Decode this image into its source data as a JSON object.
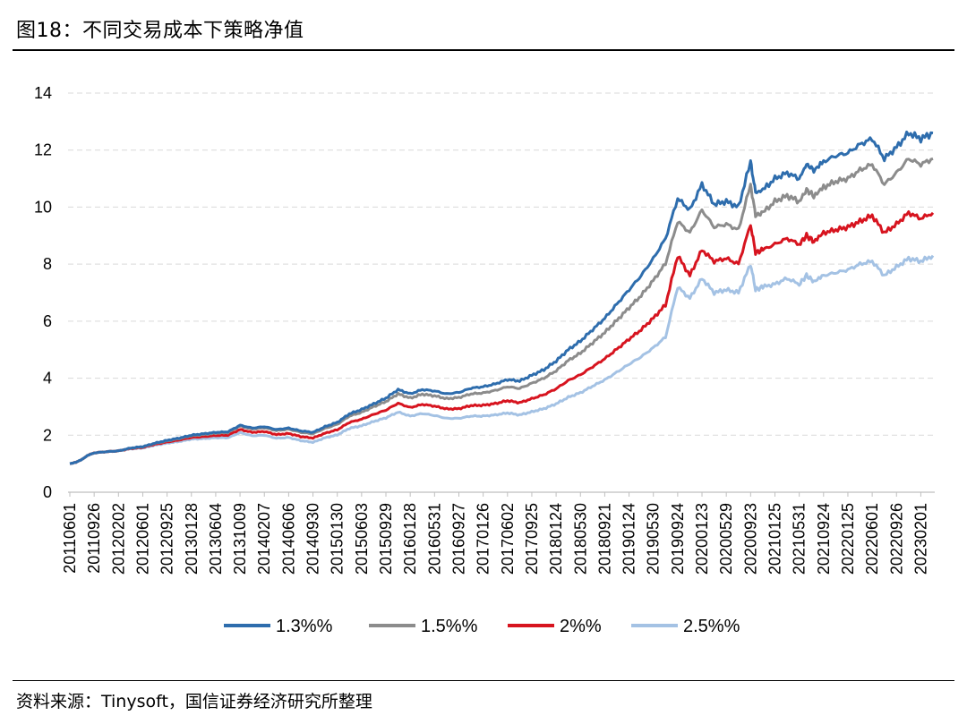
{
  "header": {
    "title": "图18：不同交易成本下策略净值"
  },
  "footer": {
    "source": "资料来源：Tinysoft，国信证券经济研究所整理"
  },
  "chart_data": {
    "type": "line",
    "title": "",
    "xlabel": "",
    "ylabel": "",
    "ylim": [
      0,
      14
    ],
    "yticks": [
      0,
      2,
      4,
      6,
      8,
      10,
      12,
      14
    ],
    "grid": "horizontal-dashed",
    "legend_position": "bottom",
    "x_ticks": [
      "20110601",
      "20110926",
      "20120202",
      "20120601",
      "20120925",
      "20130128",
      "20130604",
      "20131009",
      "20140207",
      "20140606",
      "20140930",
      "20150130",
      "20150603",
      "20150929",
      "20160128",
      "20160531",
      "20160927",
      "20170126",
      "20170602",
      "20170925",
      "20180124",
      "20180530",
      "20180921",
      "20190124",
      "20190530",
      "20190924",
      "20200123",
      "20200529",
      "20200923",
      "20210125",
      "20210531",
      "20210924",
      "20220125",
      "20220601",
      "20220926",
      "20230201"
    ],
    "x": [
      0,
      0.25,
      0.5,
      0.75,
      1,
      1.5,
      2,
      2.5,
      3,
      3.5,
      4,
      4.5,
      5,
      5.5,
      6,
      6.5,
      7,
      7.5,
      8,
      8.5,
      9,
      9.5,
      10,
      10.5,
      11,
      11.5,
      12,
      12.5,
      13,
      13.5,
      14,
      14.5,
      15,
      15.5,
      16,
      16.5,
      17,
      17.5,
      18,
      18.5,
      19,
      19.5,
      20,
      20.5,
      21,
      21.5,
      22,
      22.5,
      23,
      23.5,
      24,
      24.5,
      25,
      25.5,
      26,
      26.5,
      27,
      27.5,
      28,
      28.2,
      28.5,
      29,
      29.5,
      30,
      30.3,
      30.6,
      31,
      31.5,
      32,
      32.5,
      33,
      33.5,
      34,
      34.5,
      35,
      35.5
    ],
    "series": [
      {
        "name": "1.3%%",
        "color": "#2e6dad",
        "values": [
          1.0,
          1.05,
          1.15,
          1.3,
          1.38,
          1.42,
          1.45,
          1.55,
          1.6,
          1.72,
          1.82,
          1.9,
          2.0,
          2.05,
          2.1,
          2.12,
          2.35,
          2.25,
          2.3,
          2.2,
          2.25,
          2.15,
          2.1,
          2.3,
          2.45,
          2.75,
          2.9,
          3.1,
          3.3,
          3.6,
          3.45,
          3.6,
          3.55,
          3.45,
          3.5,
          3.65,
          3.7,
          3.8,
          3.95,
          3.9,
          4.1,
          4.3,
          4.6,
          5.0,
          5.3,
          5.7,
          6.1,
          6.6,
          7.1,
          7.6,
          8.2,
          8.9,
          10.3,
          9.9,
          10.8,
          10.1,
          10.2,
          10.0,
          11.6,
          10.5,
          10.6,
          11.0,
          11.2,
          11.0,
          11.5,
          11.3,
          11.6,
          11.8,
          11.9,
          12.2,
          12.4,
          11.7,
          12.1,
          12.6,
          12.4,
          12.6
        ]
      },
      {
        "name": "1.5%%",
        "color": "#8c8c8c",
        "values": [
          1.0,
          1.05,
          1.15,
          1.3,
          1.38,
          1.42,
          1.45,
          1.54,
          1.59,
          1.71,
          1.8,
          1.88,
          1.98,
          2.02,
          2.07,
          2.09,
          2.32,
          2.22,
          2.26,
          2.16,
          2.21,
          2.1,
          2.05,
          2.24,
          2.38,
          2.67,
          2.8,
          3.0,
          3.18,
          3.45,
          3.3,
          3.44,
          3.38,
          3.28,
          3.32,
          3.45,
          3.48,
          3.57,
          3.7,
          3.64,
          3.82,
          4.0,
          4.26,
          4.62,
          4.88,
          5.24,
          5.6,
          6.03,
          6.47,
          6.9,
          7.43,
          8.02,
          9.5,
          9.1,
          9.9,
          9.3,
          9.4,
          9.2,
          10.8,
          9.7,
          9.8,
          10.2,
          10.4,
          10.2,
          10.6,
          10.4,
          10.7,
          10.9,
          11.0,
          11.3,
          11.5,
          10.8,
          11.2,
          11.7,
          11.5,
          11.7
        ]
      },
      {
        "name": "2%%",
        "color": "#d7141f",
        "values": [
          1.0,
          1.05,
          1.15,
          1.3,
          1.38,
          1.42,
          1.45,
          1.53,
          1.57,
          1.68,
          1.76,
          1.83,
          1.92,
          1.95,
          1.99,
          2.0,
          2.2,
          2.1,
          2.13,
          2.02,
          2.06,
          1.95,
          1.9,
          2.07,
          2.19,
          2.45,
          2.56,
          2.73,
          2.88,
          3.12,
          2.97,
          3.08,
          3.02,
          2.92,
          2.93,
          3.04,
          3.05,
          3.11,
          3.21,
          3.14,
          3.28,
          3.42,
          3.63,
          3.92,
          4.12,
          4.4,
          4.68,
          5.02,
          5.37,
          5.7,
          6.11,
          6.57,
          8.3,
          7.6,
          8.5,
          8.1,
          8.2,
          8.0,
          9.4,
          8.4,
          8.5,
          8.7,
          8.9,
          8.7,
          9.0,
          8.8,
          9.1,
          9.2,
          9.3,
          9.5,
          9.7,
          9.1,
          9.4,
          9.8,
          9.6,
          9.8
        ]
      },
      {
        "name": "2.5%%",
        "color": "#a4c2e4",
        "values": [
          1.0,
          1.05,
          1.15,
          1.3,
          1.38,
          1.42,
          1.45,
          1.52,
          1.55,
          1.65,
          1.72,
          1.78,
          1.86,
          1.88,
          1.91,
          1.91,
          2.09,
          1.98,
          2.0,
          1.89,
          1.92,
          1.81,
          1.75,
          1.91,
          2.01,
          2.24,
          2.33,
          2.48,
          2.61,
          2.81,
          2.67,
          2.76,
          2.69,
          2.59,
          2.59,
          2.67,
          2.67,
          2.71,
          2.78,
          2.71,
          2.82,
          2.93,
          3.1,
          3.33,
          3.49,
          3.72,
          3.94,
          4.21,
          4.49,
          4.75,
          5.07,
          5.44,
          7.2,
          6.8,
          7.5,
          7.0,
          7.1,
          7.0,
          8.0,
          7.1,
          7.2,
          7.3,
          7.5,
          7.3,
          7.6,
          7.4,
          7.6,
          7.7,
          7.8,
          8.0,
          8.1,
          7.6,
          7.9,
          8.2,
          8.1,
          8.3
        ]
      }
    ]
  }
}
